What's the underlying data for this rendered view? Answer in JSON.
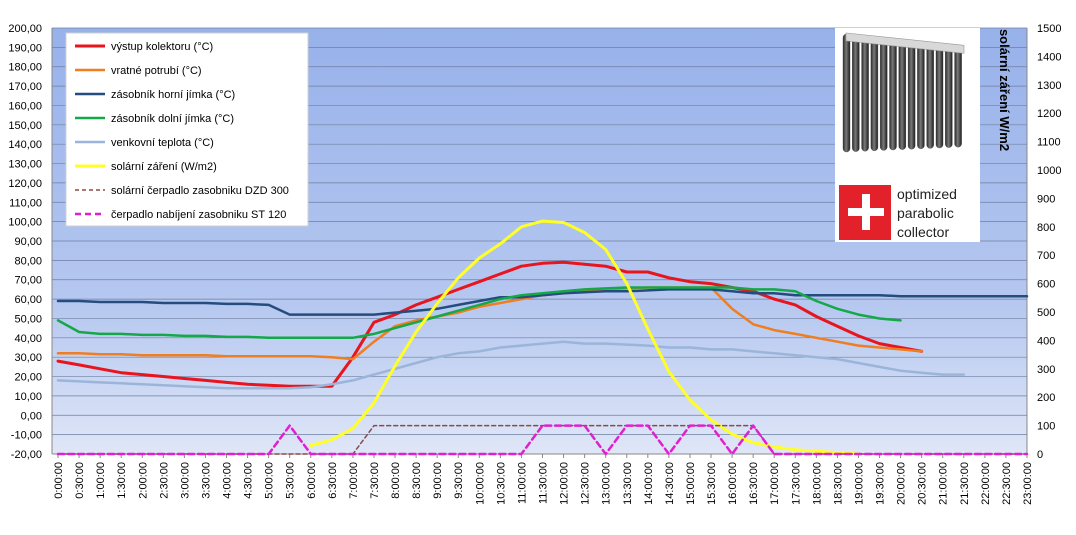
{
  "chart_data": {
    "type": "line",
    "y_left": {
      "min": -20,
      "max": 200,
      "step": 10
    },
    "y_right": {
      "label": "solární záření W/m2",
      "min": 0,
      "max": 1500,
      "step": 100
    },
    "x": [
      "0:00:00",
      "0:30:00",
      "1:00:00",
      "1:30:00",
      "2:00:00",
      "2:30:00",
      "3:00:00",
      "3:30:00",
      "4:00:00",
      "4:30:00",
      "5:00:00",
      "5:30:00",
      "6:00:00",
      "6:30:00",
      "7:00:00",
      "7:30:00",
      "8:00:00",
      "8:30:00",
      "9:00:00",
      "9:30:00",
      "10:00:00",
      "10:30:00",
      "11:00:00",
      "11:30:00",
      "12:00:00",
      "12:30:00",
      "13:00:00",
      "13:30:00",
      "14:00:00",
      "14:30:00",
      "15:00:00",
      "15:30:00",
      "16:00:00",
      "16:30:00",
      "17:00:00",
      "17:30:00",
      "18:00:00",
      "18:30:00",
      "19:00:00",
      "19:30:00",
      "20:00:00",
      "20:30:00",
      "21:00:00",
      "21:30:00",
      "22:00:00",
      "22:30:00",
      "23:00:00"
    ],
    "background": "#9db8ec",
    "grid": "horizontal",
    "legend_position": "top-left",
    "series": [
      {
        "name": "výstup kolektoru (°C)",
        "axis": "left",
        "color": "#e8141e",
        "width": 3,
        "dash": "",
        "values": [
          28,
          26,
          24,
          22,
          21,
          20,
          19,
          18,
          17,
          16,
          15.5,
          15,
          15,
          15,
          30,
          48,
          52,
          57,
          61,
          65,
          69,
          73,
          77,
          78.5,
          79,
          78,
          77,
          74,
          74,
          71,
          69,
          68,
          66,
          64,
          60,
          57,
          51,
          46,
          41,
          37,
          35,
          33,
          null,
          null,
          null,
          null,
          null
        ]
      },
      {
        "name": "vratné potrubí (°C)",
        "axis": "left",
        "color": "#ef7d22",
        "width": 2.5,
        "dash": "",
        "values": [
          32,
          32,
          31.5,
          31.5,
          31,
          31,
          31,
          31,
          30.5,
          30.5,
          30.5,
          30.5,
          30.5,
          30,
          29,
          38,
          46,
          49,
          51,
          53,
          56,
          58,
          60,
          62,
          63,
          64,
          65,
          65.5,
          66,
          66,
          66,
          66,
          55,
          47,
          44,
          42,
          40,
          38,
          36,
          35,
          34,
          33,
          null,
          null,
          null,
          null,
          null
        ]
      },
      {
        "name": "zásobník horní jímka (°C)",
        "axis": "left",
        "color": "#244c7e",
        "width": 2.5,
        "dash": "",
        "values": [
          59,
          59,
          58.5,
          58.5,
          58.5,
          58,
          58,
          58,
          57.5,
          57.5,
          57,
          52,
          52,
          52,
          52,
          52,
          53,
          54,
          55,
          57,
          59,
          61,
          61,
          62,
          63,
          63.5,
          64,
          64,
          64.5,
          65,
          65,
          65,
          64,
          63,
          63,
          62,
          62,
          62,
          62,
          62,
          61.5,
          61.5,
          61.5,
          61.5,
          61.5,
          61.5,
          61.5
        ]
      },
      {
        "name": "zásobník dolní jímka (°C)",
        "axis": "left",
        "color": "#14a849",
        "width": 2.5,
        "dash": "",
        "values": [
          49,
          43,
          42,
          42,
          41.5,
          41.5,
          41,
          41,
          40.5,
          40.5,
          40,
          40,
          40,
          40,
          40,
          42,
          45,
          48,
          51,
          54,
          57,
          60,
          62,
          63,
          64,
          65,
          65.5,
          66,
          66,
          66,
          66,
          66,
          66,
          65,
          65,
          64,
          59,
          55,
          52,
          50,
          49,
          null,
          null,
          null,
          null,
          null,
          null
        ]
      },
      {
        "name": "venkovní teplota (°C)",
        "axis": "left",
        "color": "#9ab5d9",
        "width": 2.5,
        "dash": "",
        "values": [
          18,
          17.5,
          17,
          16.5,
          16,
          15.5,
          15,
          14.5,
          14,
          14,
          14,
          14,
          14.5,
          16,
          18,
          21,
          24,
          27,
          30,
          32,
          33,
          35,
          36,
          37,
          38,
          37,
          37,
          36.5,
          36,
          35,
          35,
          34,
          34,
          33,
          32,
          31,
          30,
          29,
          27,
          25,
          23,
          22,
          21,
          21,
          null,
          null,
          null
        ]
      },
      {
        "name": "solární záření (W/m2)",
        "axis": "right",
        "color": "#ffff27",
        "width": 3,
        "dash": "",
        "values": [
          null,
          null,
          null,
          null,
          null,
          null,
          null,
          null,
          null,
          null,
          null,
          null,
          30,
          50,
          90,
          180,
          310,
          430,
          530,
          620,
          690,
          740,
          800,
          820,
          815,
          780,
          720,
          600,
          440,
          290,
          190,
          120,
          70,
          40,
          25,
          15,
          10,
          5,
          0,
          null,
          null,
          null,
          null,
          null,
          null,
          null,
          null
        ]
      },
      {
        "name": "solární čerpadlo zasobniku  DZD 300",
        "axis": "right",
        "color": "#8b4a46",
        "width": 1.5,
        "dash": "4,3",
        "values": [
          0,
          0,
          0,
          0,
          0,
          0,
          0,
          0,
          0,
          0,
          0,
          0,
          0,
          0,
          0,
          100,
          100,
          100,
          100,
          100,
          100,
          100,
          100,
          100,
          100,
          100,
          100,
          100,
          100,
          100,
          100,
          100,
          100,
          100,
          0,
          0,
          0,
          0,
          0,
          0,
          0,
          0,
          0,
          0,
          0,
          0,
          0
        ]
      },
      {
        "name": "čerpadlo nabíjení  zasobniku ST 120",
        "axis": "right",
        "color": "#e020d0",
        "width": 2.5,
        "dash": "6,4",
        "values": [
          0,
          0,
          0,
          0,
          0,
          0,
          0,
          0,
          0,
          0,
          0,
          100,
          0,
          0,
          0,
          0,
          0,
          0,
          0,
          0,
          0,
          0,
          0,
          100,
          100,
          100,
          0,
          100,
          100,
          0,
          100,
          100,
          0,
          100,
          0,
          0,
          0,
          0,
          0,
          0,
          0,
          0,
          0,
          0,
          0,
          0,
          0
        ]
      }
    ]
  },
  "badge": {
    "line1": "optimized",
    "line2": "parabolic",
    "line3": "collector",
    "flag_color": "#e3212b"
  }
}
